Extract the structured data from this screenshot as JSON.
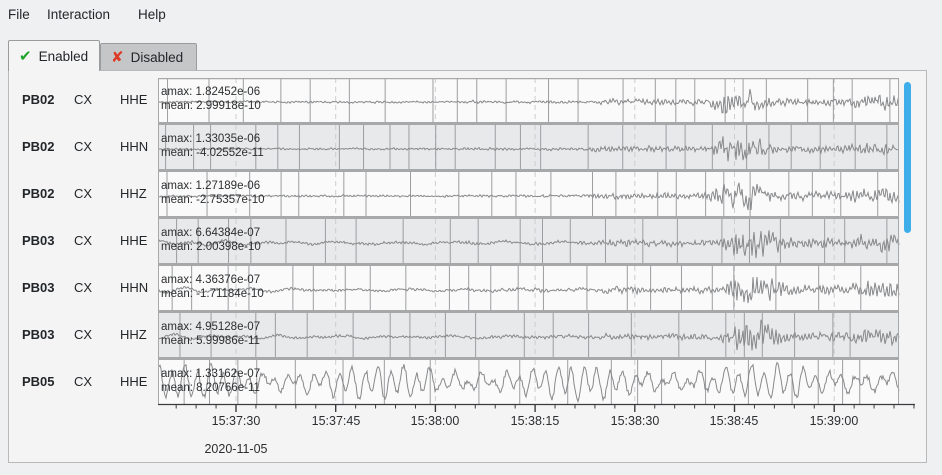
{
  "menu": {
    "items": [
      {
        "label": "File"
      },
      {
        "label": "Interaction"
      },
      {
        "label": "Help"
      }
    ]
  },
  "tabs": {
    "enabled": {
      "label": "Enabled"
    },
    "disabled": {
      "label": "Disabled"
    }
  },
  "icons": {
    "check": "✔",
    "cross": "✘"
  },
  "plot": {
    "rows": [
      {
        "station": "PB02",
        "network": "CX",
        "channel": "HHE",
        "amax_label": "amax: 1.82452e-06",
        "mean_label": "mean: 2.99918e-10",
        "pattern": "event-a"
      },
      {
        "station": "PB02",
        "network": "CX",
        "channel": "HHN",
        "amax_label": "amax: 1.33035e-06",
        "mean_label": "mean: -4.02552e-11",
        "pattern": "event-a"
      },
      {
        "station": "PB02",
        "network": "CX",
        "channel": "HHZ",
        "amax_label": "amax: 1.27189e-06",
        "mean_label": "mean: -2.75357e-10",
        "pattern": "event-a"
      },
      {
        "station": "PB03",
        "network": "CX",
        "channel": "HHE",
        "amax_label": "amax: 6.64384e-07",
        "mean_label": "mean: 2.00398e-10",
        "pattern": "event-b"
      },
      {
        "station": "PB03",
        "network": "CX",
        "channel": "HHN",
        "amax_label": "amax: 4.36376e-07",
        "mean_label": "mean: -1.71184e-10",
        "pattern": "event-b"
      },
      {
        "station": "PB03",
        "network": "CX",
        "channel": "HHZ",
        "amax_label": "amax: 4.95128e-07",
        "mean_label": "mean: 5.99986e-11",
        "pattern": "event-b"
      },
      {
        "station": "PB05",
        "network": "CX",
        "channel": "HHE",
        "amax_label": "amax: 1.33162e-07",
        "mean_label": "mean: 8.20766e-11",
        "pattern": "continuous"
      }
    ]
  },
  "axis": {
    "tick_labels": [
      "15:37:30",
      "15:37:45",
      "15:38:00",
      "15:38:15",
      "15:38:30",
      "15:38:45",
      "15:39:00"
    ],
    "date": "2020-11-05"
  },
  "colors": {
    "accent_scrollbar": "#3daee9",
    "trace": "#87888a",
    "row_bg_light": "#fafafa",
    "row_bg_dark": "#e8e9ea",
    "grid_line": "#9c9da0",
    "separator": "#a7a8aa",
    "dashed_grid": "#cccdcf",
    "axis_line": "#3b3b3d"
  },
  "chart_data": {
    "type": "line",
    "title": "",
    "x_axis": {
      "date": "2020-11-05",
      "tick_labels": [
        "15:37:30",
        "15:37:45",
        "15:38:00",
        "15:38:15",
        "15:38:30",
        "15:38:45",
        "15:39:00"
      ],
      "major_tick_interval_seconds": 15,
      "minor_tick_interval_seconds": 3,
      "visible_range": [
        "15:37:18",
        "15:39:12"
      ]
    },
    "series": [
      {
        "station": "PB02",
        "network": "CX",
        "channel": "HHE",
        "amax": 1.82452e-06,
        "mean": 2.99918e-10,
        "signal": "quiet background, emergent tremor from ~15:38:25, strong burst ~15:38:41-15:38:52, renewed burst after ~15:39:02"
      },
      {
        "station": "PB02",
        "network": "CX",
        "channel": "HHN",
        "amax": 1.33035e-06,
        "mean": -4.02552e-11,
        "signal": "quiet background, emergent tremor from ~15:38:25, strong burst ~15:38:41-15:38:52, renewed burst after ~15:39:02"
      },
      {
        "station": "PB02",
        "network": "CX",
        "channel": "HHZ",
        "amax": 1.27189e-06,
        "mean": -2.75357e-10,
        "signal": "quiet background, emergent tremor from ~15:38:25, strong burst ~15:38:41-15:38:52, renewed burst after ~15:39:02"
      },
      {
        "station": "PB03",
        "network": "CX",
        "channel": "HHE",
        "amax": 6.64384e-07,
        "mean": 2.00398e-10,
        "signal": "low-frequency microseism, abrupt onset ~15:38:26, strong burst ~15:38:43-15:38:55, elevated to end of window"
      },
      {
        "station": "PB03",
        "network": "CX",
        "channel": "HHN",
        "amax": 4.36376e-07,
        "mean": -1.71184e-10,
        "signal": "low-frequency microseism, abrupt onset ~15:38:26, strong burst ~15:38:43-15:38:55, elevated to end of window"
      },
      {
        "station": "PB03",
        "network": "CX",
        "channel": "HHZ",
        "amax": 4.95128e-07,
        "mean": 5.99986e-11,
        "signal": "low-frequency microseism, abrupt onset ~15:38:26, strong burst ~15:38:43-15:38:55, elevated to end of window"
      },
      {
        "station": "PB05",
        "network": "CX",
        "channel": "HHE",
        "amax": 1.33162e-07,
        "mean": 8.20766e-11,
        "signal": "continuous large low-frequency oscillations across entire window"
      }
    ]
  }
}
